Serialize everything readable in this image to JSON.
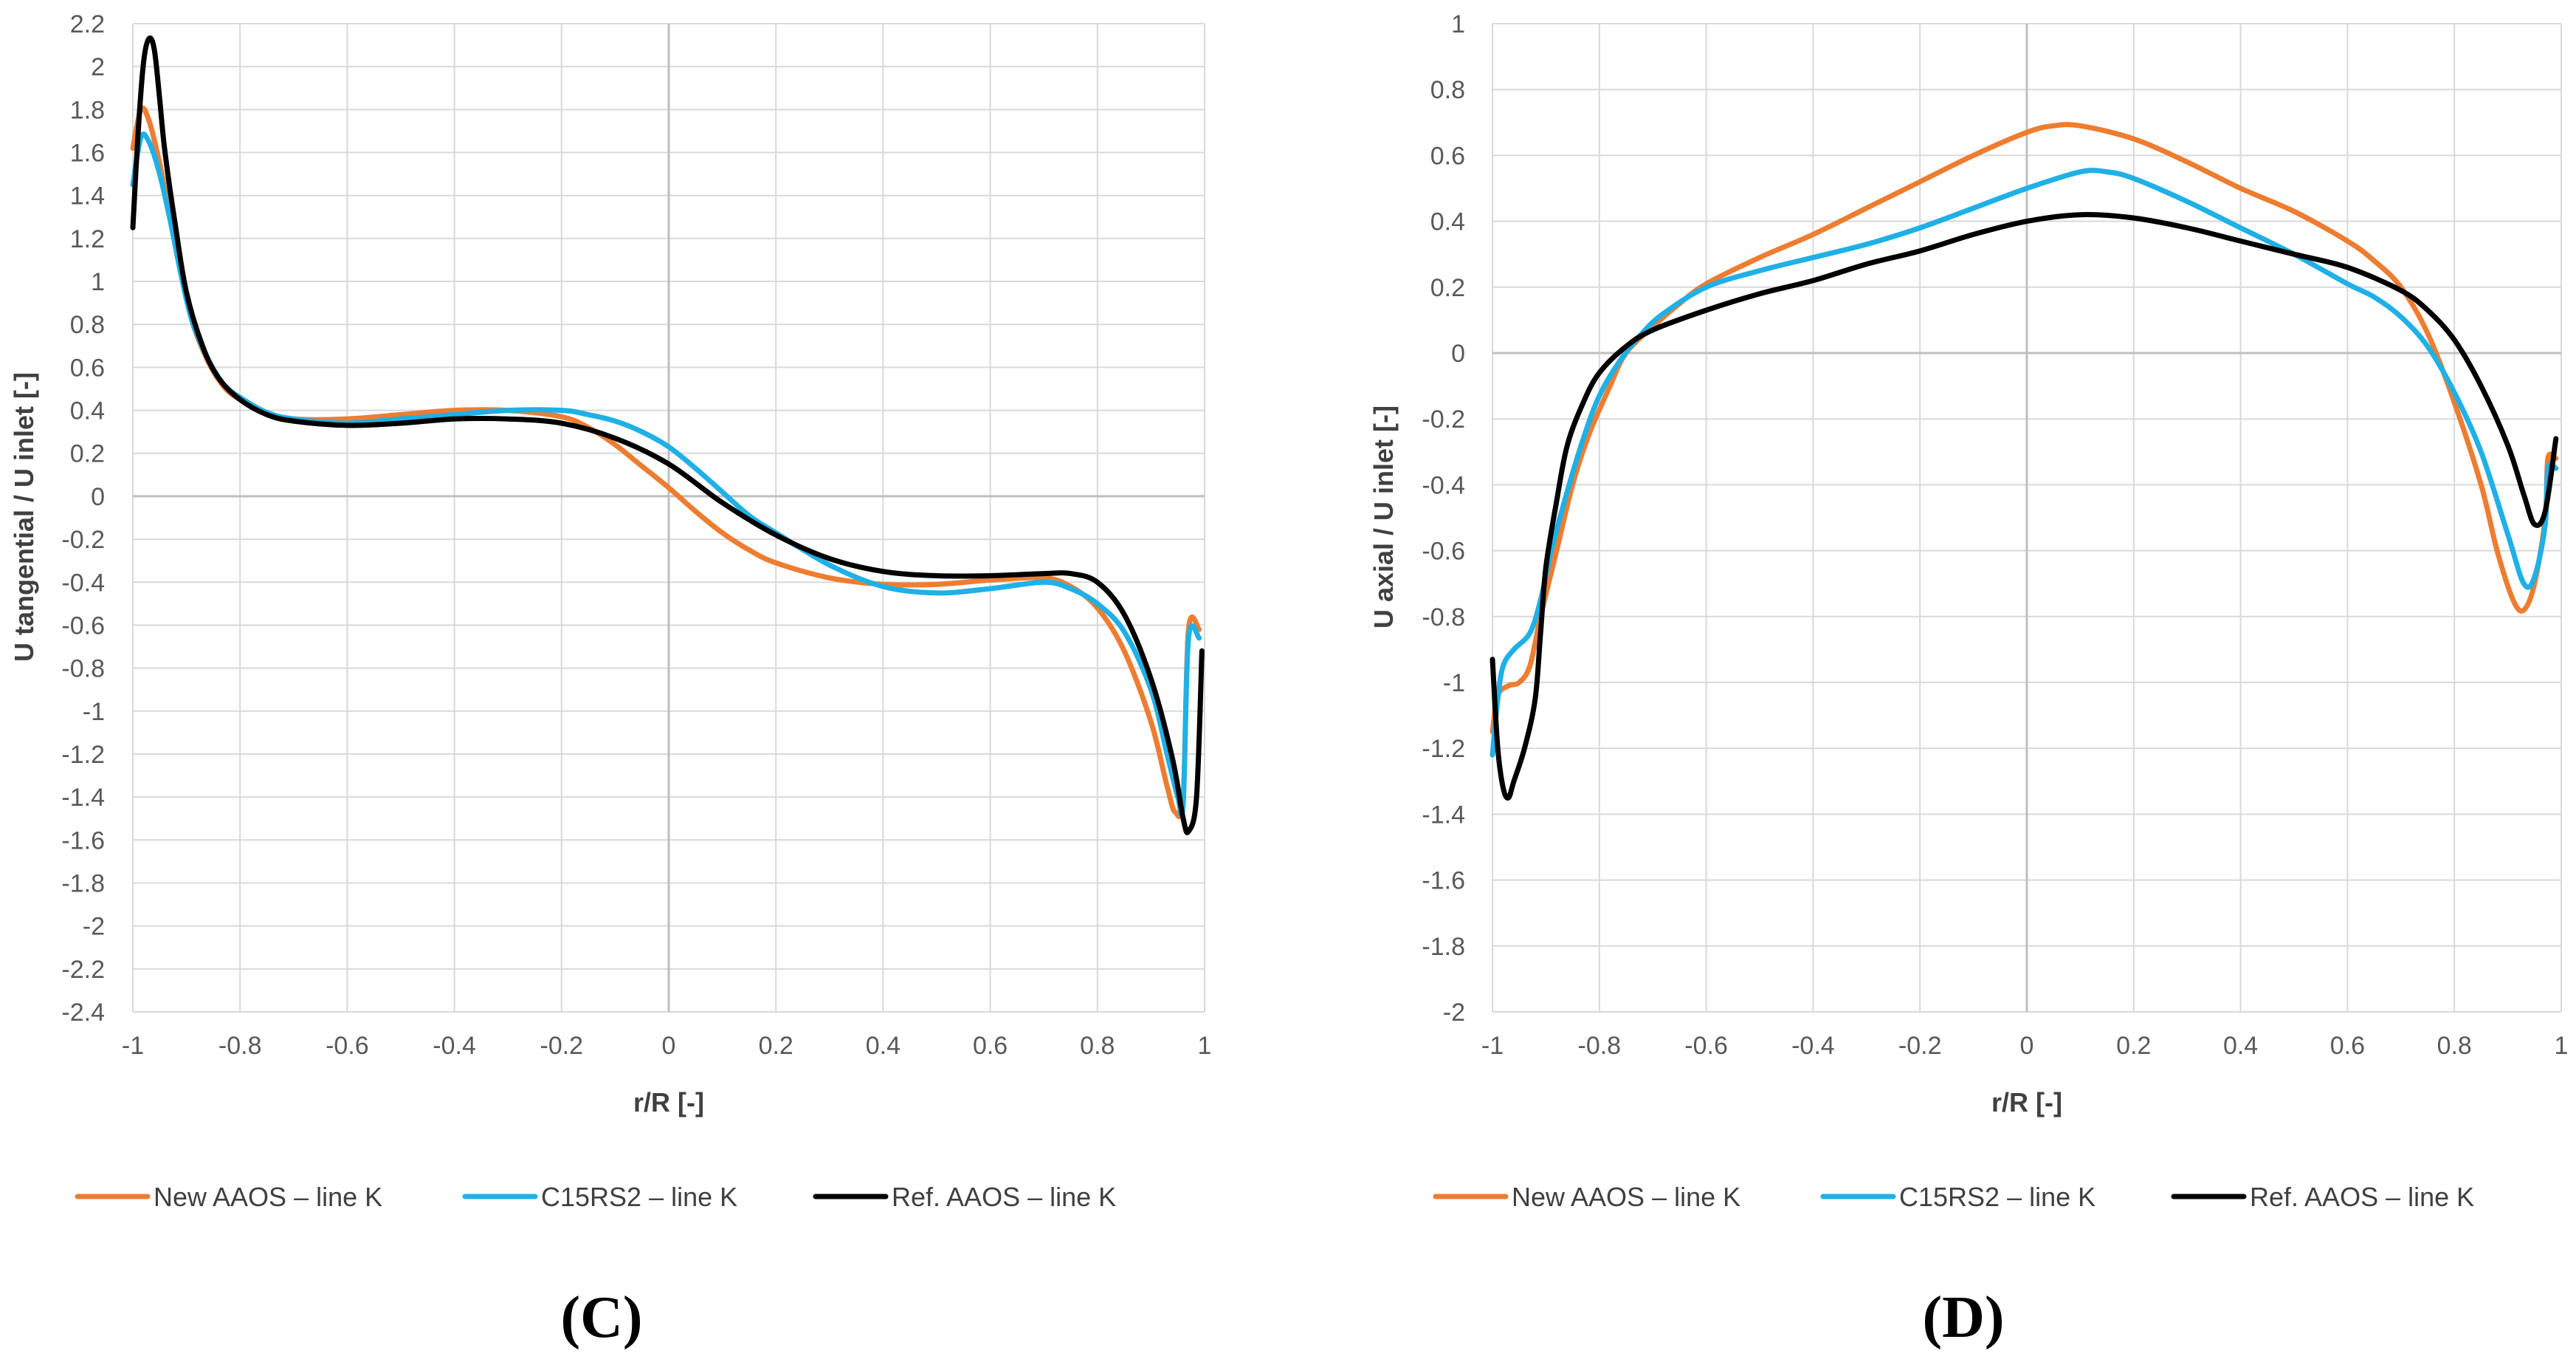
{
  "chart_data": [
    {
      "type": "line",
      "panel_label": "(C)",
      "xlabel": "r/R [-]",
      "ylabel": "U tangential / U inlet [-]",
      "xlim": [
        -1,
        1
      ],
      "ylim": [
        -2.4,
        2.2
      ],
      "x_ticks": [
        -1,
        -0.8,
        -0.6,
        -0.4,
        -0.2,
        0,
        0.2,
        0.4,
        0.6,
        0.8,
        1
      ],
      "y_ticks": [
        2.2,
        2,
        1.8,
        1.6,
        1.4,
        1.2,
        1,
        0.8,
        0.6,
        0.4,
        0.2,
        0,
        -0.2,
        -0.4,
        -0.6,
        -0.8,
        -1,
        -1.2,
        -1.4,
        -1.6,
        -1.8,
        -2,
        -2.2,
        -2.4
      ],
      "x_tick_labels": [
        "-1",
        "-0.8",
        "-0.6",
        "-0.4",
        "-0.2",
        "0",
        "0.2",
        "0.4",
        "0.6",
        "0.8",
        "1"
      ],
      "y_tick_labels": [
        "2.2",
        "2",
        "1.8",
        "1.6",
        "1.4",
        "1.2",
        "1",
        "0.8",
        "0.6",
        "0.4",
        "0.2",
        "0",
        "-0.2",
        "-0.4",
        "-0.6",
        "-0.8",
        "-1",
        "-1.2",
        "-1.4",
        "-1.6",
        "-1.8",
        "-2",
        "-2.2",
        "-2.4"
      ],
      "grid": true,
      "legend_position": "bottom",
      "series": [
        {
          "name": "New AAOS – line K",
          "color": "#ED7D31",
          "points": [
            [
              -1,
              1.62
            ],
            [
              -0.985,
              1.8
            ],
            [
              -0.97,
              1.75
            ],
            [
              -0.95,
              1.55
            ],
            [
              -0.93,
              1.3
            ],
            [
              -0.91,
              1.05
            ],
            [
              -0.89,
              0.82
            ],
            [
              -0.86,
              0.63
            ],
            [
              -0.83,
              0.51
            ],
            [
              -0.8,
              0.45
            ],
            [
              -0.75,
              0.39
            ],
            [
              -0.7,
              0.36
            ],
            [
              -0.6,
              0.36
            ],
            [
              -0.5,
              0.38
            ],
            [
              -0.4,
              0.4
            ],
            [
              -0.3,
              0.4
            ],
            [
              -0.2,
              0.37
            ],
            [
              -0.15,
              0.32
            ],
            [
              -0.1,
              0.24
            ],
            [
              -0.05,
              0.14
            ],
            [
              0,
              0.04
            ],
            [
              0.05,
              -0.07
            ],
            [
              0.1,
              -0.17
            ],
            [
              0.15,
              -0.25
            ],
            [
              0.2,
              -0.31
            ],
            [
              0.3,
              -0.38
            ],
            [
              0.4,
              -0.41
            ],
            [
              0.5,
              -0.41
            ],
            [
              0.6,
              -0.39
            ],
            [
              0.7,
              -0.38
            ],
            [
              0.75,
              -0.42
            ],
            [
              0.8,
              -0.52
            ],
            [
              0.85,
              -0.72
            ],
            [
              0.9,
              -1.05
            ],
            [
              0.93,
              -1.35
            ],
            [
              0.945,
              -1.47
            ],
            [
              0.96,
              -1.4
            ],
            [
              0.97,
              -0.62
            ],
            [
              0.99,
              -0.62
            ]
          ]
        },
        {
          "name": "C15RS2 – line K",
          "color": "#1FB0E6",
          "points": [
            [
              -1,
              1.45
            ],
            [
              -0.985,
              1.67
            ],
            [
              -0.97,
              1.65
            ],
            [
              -0.95,
              1.5
            ],
            [
              -0.93,
              1.28
            ],
            [
              -0.91,
              1.03
            ],
            [
              -0.89,
              0.82
            ],
            [
              -0.86,
              0.64
            ],
            [
              -0.83,
              0.52
            ],
            [
              -0.8,
              0.46
            ],
            [
              -0.75,
              0.39
            ],
            [
              -0.7,
              0.36
            ],
            [
              -0.6,
              0.34
            ],
            [
              -0.5,
              0.36
            ],
            [
              -0.4,
              0.38
            ],
            [
              -0.3,
              0.4
            ],
            [
              -0.2,
              0.4
            ],
            [
              -0.15,
              0.38
            ],
            [
              -0.1,
              0.35
            ],
            [
              -0.05,
              0.3
            ],
            [
              0,
              0.23
            ],
            [
              0.05,
              0.13
            ],
            [
              0.1,
              0.02
            ],
            [
              0.15,
              -0.09
            ],
            [
              0.2,
              -0.17
            ],
            [
              0.3,
              -0.32
            ],
            [
              0.4,
              -0.42
            ],
            [
              0.5,
              -0.45
            ],
            [
              0.6,
              -0.43
            ],
            [
              0.7,
              -0.4
            ],
            [
              0.75,
              -0.43
            ],
            [
              0.8,
              -0.5
            ],
            [
              0.85,
              -0.63
            ],
            [
              0.9,
              -0.9
            ],
            [
              0.93,
              -1.2
            ],
            [
              0.95,
              -1.4
            ],
            [
              0.96,
              -1.43
            ],
            [
              0.97,
              -0.66
            ],
            [
              0.99,
              -0.66
            ]
          ]
        },
        {
          "name": "Ref. AAOS – line K",
          "color": "#000000",
          "points": [
            [
              -1,
              1.25
            ],
            [
              -0.99,
              1.7
            ],
            [
              -0.98,
              2.02
            ],
            [
              -0.97,
              2.13
            ],
            [
              -0.96,
              2.08
            ],
            [
              -0.95,
              1.85
            ],
            [
              -0.94,
              1.6
            ],
            [
              -0.92,
              1.25
            ],
            [
              -0.9,
              0.95
            ],
            [
              -0.87,
              0.7
            ],
            [
              -0.84,
              0.55
            ],
            [
              -0.8,
              0.45
            ],
            [
              -0.75,
              0.38
            ],
            [
              -0.7,
              0.35
            ],
            [
              -0.6,
              0.33
            ],
            [
              -0.5,
              0.34
            ],
            [
              -0.4,
              0.36
            ],
            [
              -0.3,
              0.36
            ],
            [
              -0.2,
              0.34
            ],
            [
              -0.1,
              0.27
            ],
            [
              0,
              0.15
            ],
            [
              0.1,
              -0.03
            ],
            [
              0.2,
              -0.18
            ],
            [
              0.3,
              -0.29
            ],
            [
              0.4,
              -0.35
            ],
            [
              0.5,
              -0.37
            ],
            [
              0.6,
              -0.37
            ],
            [
              0.7,
              -0.36
            ],
            [
              0.75,
              -0.36
            ],
            [
              0.8,
              -0.4
            ],
            [
              0.85,
              -0.55
            ],
            [
              0.9,
              -0.85
            ],
            [
              0.94,
              -1.22
            ],
            [
              0.96,
              -1.5
            ],
            [
              0.97,
              -1.56
            ],
            [
              0.985,
              -1.4
            ],
            [
              0.995,
              -0.72
            ]
          ]
        }
      ]
    },
    {
      "type": "line",
      "panel_label": "(D)",
      "xlabel": "r/R [-]",
      "ylabel": "U axial / U inlet [-]",
      "xlim": [
        -1,
        1
      ],
      "ylim": [
        -2,
        1
      ],
      "x_ticks": [
        -1,
        -0.8,
        -0.6,
        -0.4,
        -0.2,
        0,
        0.2,
        0.4,
        0.6,
        0.8,
        1
      ],
      "y_ticks": [
        1,
        0.8,
        0.6,
        0.4,
        0.2,
        0,
        -0.2,
        -0.4,
        -0.6,
        -0.8,
        -1,
        -1.2,
        -1.4,
        -1.6,
        -1.8,
        -2
      ],
      "x_tick_labels": [
        "-1",
        "-0.8",
        "-0.6",
        "-0.4",
        "-0.2",
        "0",
        "0.2",
        "0.4",
        "0.6",
        "0.8",
        "1"
      ],
      "y_tick_labels": [
        "1",
        "0.8",
        "0.6",
        "0.4",
        "0.2",
        "0",
        "-0.2",
        "-0.4",
        "-0.6",
        "-0.8",
        "-1",
        "-1.2",
        "-1.4",
        "-1.6",
        "-1.8",
        "-2"
      ],
      "grid": true,
      "legend_position": "bottom",
      "series": [
        {
          "name": "New AAOS – line K",
          "color": "#ED7D31",
          "points": [
            [
              -1,
              -1.15
            ],
            [
              -0.99,
              -1.04
            ],
            [
              -0.97,
              -1.01
            ],
            [
              -0.95,
              -1.0
            ],
            [
              -0.93,
              -0.95
            ],
            [
              -0.91,
              -0.8
            ],
            [
              -0.88,
              -0.6
            ],
            [
              -0.85,
              -0.4
            ],
            [
              -0.82,
              -0.25
            ],
            [
              -0.78,
              -0.1
            ],
            [
              -0.75,
              0.0
            ],
            [
              -0.7,
              0.08
            ],
            [
              -0.65,
              0.15
            ],
            [
              -0.6,
              0.21
            ],
            [
              -0.5,
              0.29
            ],
            [
              -0.4,
              0.36
            ],
            [
              -0.3,
              0.44
            ],
            [
              -0.2,
              0.52
            ],
            [
              -0.1,
              0.6
            ],
            [
              0,
              0.67
            ],
            [
              0.05,
              0.69
            ],
            [
              0.1,
              0.69
            ],
            [
              0.2,
              0.65
            ],
            [
              0.3,
              0.58
            ],
            [
              0.4,
              0.5
            ],
            [
              0.5,
              0.43
            ],
            [
              0.6,
              0.34
            ],
            [
              0.65,
              0.28
            ],
            [
              0.7,
              0.2
            ],
            [
              0.75,
              0.06
            ],
            [
              0.8,
              -0.15
            ],
            [
              0.85,
              -0.4
            ],
            [
              0.88,
              -0.6
            ],
            [
              0.91,
              -0.75
            ],
            [
              0.93,
              -0.78
            ],
            [
              0.95,
              -0.7
            ],
            [
              0.97,
              -0.5
            ],
            [
              0.975,
              -0.32
            ],
            [
              0.99,
              -0.32
            ]
          ]
        },
        {
          "name": "C15RS2 – line K",
          "color": "#1FB0E6",
          "points": [
            [
              -1,
              -1.22
            ],
            [
              -0.99,
              -1.05
            ],
            [
              -0.98,
              -0.95
            ],
            [
              -0.96,
              -0.9
            ],
            [
              -0.93,
              -0.85
            ],
            [
              -0.91,
              -0.75
            ],
            [
              -0.89,
              -0.6
            ],
            [
              -0.86,
              -0.42
            ],
            [
              -0.83,
              -0.26
            ],
            [
              -0.8,
              -0.13
            ],
            [
              -0.76,
              -0.02
            ],
            [
              -0.72,
              0.06
            ],
            [
              -0.68,
              0.12
            ],
            [
              -0.6,
              0.2
            ],
            [
              -0.5,
              0.25
            ],
            [
              -0.4,
              0.29
            ],
            [
              -0.3,
              0.33
            ],
            [
              -0.2,
              0.38
            ],
            [
              -0.1,
              0.44
            ],
            [
              0,
              0.5
            ],
            [
              0.1,
              0.55
            ],
            [
              0.15,
              0.55
            ],
            [
              0.2,
              0.53
            ],
            [
              0.3,
              0.46
            ],
            [
              0.4,
              0.38
            ],
            [
              0.5,
              0.3
            ],
            [
              0.6,
              0.21
            ],
            [
              0.65,
              0.17
            ],
            [
              0.7,
              0.11
            ],
            [
              0.75,
              0.02
            ],
            [
              0.8,
              -0.12
            ],
            [
              0.85,
              -0.3
            ],
            [
              0.9,
              -0.55
            ],
            [
              0.93,
              -0.7
            ],
            [
              0.95,
              -0.68
            ],
            [
              0.97,
              -0.52
            ],
            [
              0.975,
              -0.35
            ],
            [
              0.99,
              -0.35
            ]
          ]
        },
        {
          "name": "Ref. AAOS – line K",
          "color": "#000000",
          "points": [
            [
              -1,
              -0.93
            ],
            [
              -0.99,
              -1.2
            ],
            [
              -0.98,
              -1.32
            ],
            [
              -0.97,
              -1.35
            ],
            [
              -0.96,
              -1.3
            ],
            [
              -0.94,
              -1.2
            ],
            [
              -0.92,
              -1.05
            ],
            [
              -0.91,
              -0.85
            ],
            [
              -0.9,
              -0.65
            ],
            [
              -0.88,
              -0.45
            ],
            [
              -0.86,
              -0.28
            ],
            [
              -0.83,
              -0.15
            ],
            [
              -0.8,
              -0.06
            ],
            [
              -0.75,
              0.02
            ],
            [
              -0.7,
              0.07
            ],
            [
              -0.6,
              0.13
            ],
            [
              -0.5,
              0.18
            ],
            [
              -0.4,
              0.22
            ],
            [
              -0.3,
              0.27
            ],
            [
              -0.2,
              0.31
            ],
            [
              -0.1,
              0.36
            ],
            [
              0,
              0.4
            ],
            [
              0.1,
              0.42
            ],
            [
              0.2,
              0.41
            ],
            [
              0.3,
              0.38
            ],
            [
              0.4,
              0.34
            ],
            [
              0.5,
              0.3
            ],
            [
              0.6,
              0.26
            ],
            [
              0.7,
              0.19
            ],
            [
              0.75,
              0.13
            ],
            [
              0.8,
              0.04
            ],
            [
              0.85,
              -0.1
            ],
            [
              0.9,
              -0.28
            ],
            [
              0.93,
              -0.43
            ],
            [
              0.95,
              -0.52
            ],
            [
              0.97,
              -0.48
            ],
            [
              0.99,
              -0.26
            ]
          ]
        }
      ]
    }
  ]
}
